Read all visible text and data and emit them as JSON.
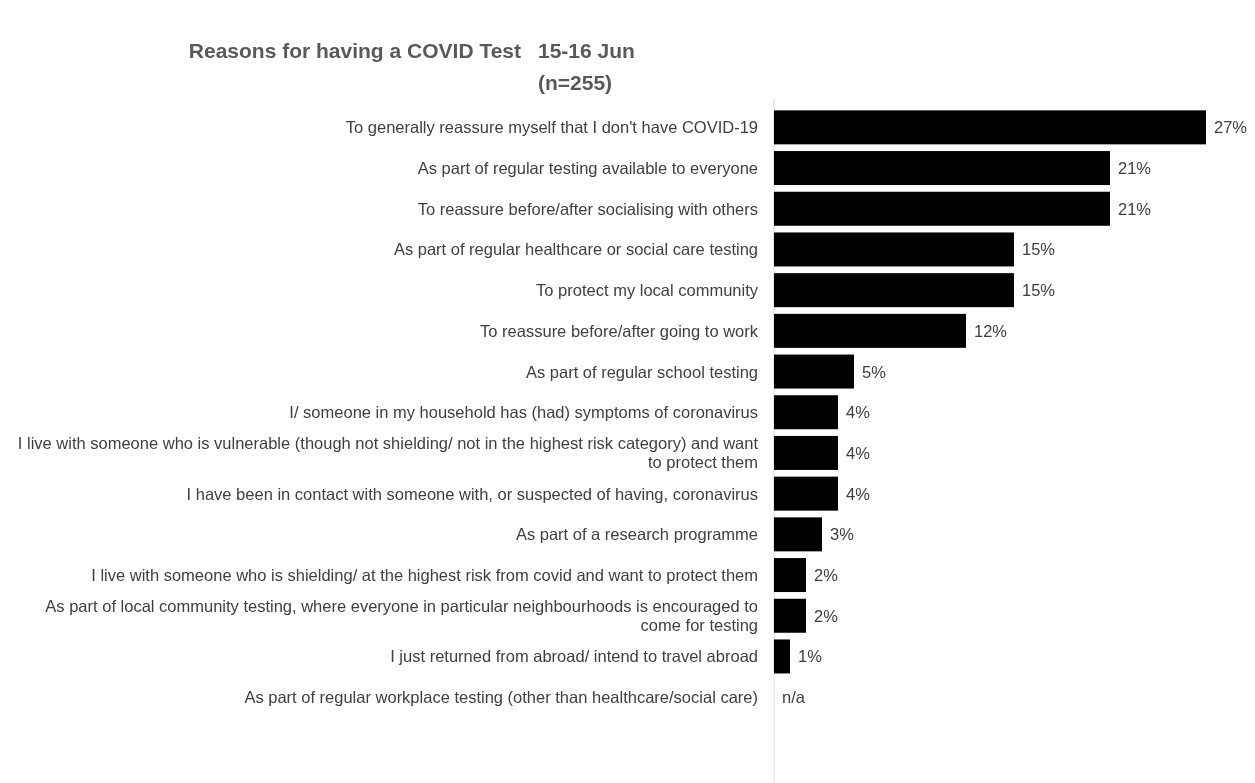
{
  "chart_data": {
    "type": "bar",
    "orientation": "horizontal",
    "title": "Reasons for having a COVID Test",
    "subtitle": "15-16 Jun (n=255)",
    "categories": [
      "To generally reassure myself that I don't have COVID-19",
      "As part of regular testing available to everyone",
      "To reassure before/after socialising with others",
      "As part of regular healthcare or social care testing",
      "To protect my local community",
      "To reassure before/after going to work",
      "As part of regular school testing",
      "I/ someone in my household has (had) symptoms of coronavirus",
      "I live with someone who is vulnerable (though not shielding/ not in the highest risk category) and want to protect them",
      "I have been in contact with someone with, or suspected of having, coronavirus",
      "As part of a research programme",
      "I live with someone who is shielding/ at the highest risk from covid and want to protect them",
      "As part of local community testing, where everyone in particular neighbourhoods is encouraged to come for testing",
      "I just returned from abroad/ intend to travel abroad",
      "As part of regular workplace testing (other than healthcare/social care)"
    ],
    "values": [
      27,
      21,
      21,
      15,
      15,
      12,
      5,
      4,
      4,
      4,
      3,
      2,
      2,
      1,
      null
    ],
    "value_labels": [
      "27%",
      "21%",
      "21%",
      "15%",
      "15%",
      "12%",
      "5%",
      "4%",
      "4%",
      "4%",
      "3%",
      "2%",
      "2%",
      "1%",
      "n/a"
    ],
    "color": "#000000"
  }
}
